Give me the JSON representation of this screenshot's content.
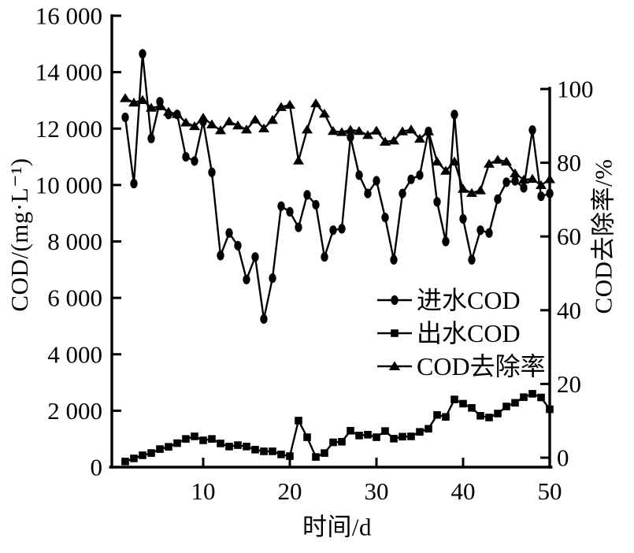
{
  "figure": {
    "background": "#ffffff",
    "ink_color": "#000000",
    "description": "COD treatment performance line chart, dual y-axes, 50 days"
  },
  "chart_data": {
    "type": "line",
    "x": [
      1,
      2,
      3,
      4,
      5,
      6,
      7,
      8,
      9,
      10,
      11,
      12,
      13,
      14,
      15,
      16,
      17,
      18,
      19,
      20,
      21,
      22,
      23,
      24,
      25,
      26,
      27,
      28,
      29,
      30,
      31,
      32,
      33,
      34,
      35,
      36,
      37,
      38,
      39,
      40,
      41,
      42,
      43,
      44,
      45,
      46,
      47,
      48,
      49,
      50
    ],
    "xlabel": "时间/d",
    "ylabel_left": "COD/(mg·L⁻¹)",
    "ylabel_right": "COD去除率/%",
    "xlim": [
      0,
      50
    ],
    "ylim_left": [
      0,
      16000
    ],
    "ylim_right": [
      0,
      100
    ],
    "grid": false,
    "legend_position": "inside-center-right",
    "x_ticks": [
      10,
      20,
      30,
      40,
      50
    ],
    "x_tick_labels": [
      "10",
      "20",
      "30",
      "40",
      "50"
    ],
    "y_left_ticks": [
      0,
      2000,
      4000,
      6000,
      8000,
      10000,
      12000,
      14000,
      16000
    ],
    "y_left_tick_labels": [
      "0",
      "2 000",
      "4 000",
      "6 000",
      "8 000",
      "10 000",
      "12 000",
      "14 000",
      "16 000"
    ],
    "y_right_ticks": [
      0,
      20,
      40,
      60,
      80,
      100
    ],
    "y_right_tick_labels": [
      "0",
      "20",
      "40",
      "60",
      "80",
      "100"
    ],
    "series": [
      {
        "name": "进水COD",
        "marker": "circle",
        "axis": "left",
        "unit": "mg·L⁻¹",
        "values": [
          12400,
          10050,
          14650,
          11650,
          12950,
          12500,
          12500,
          11000,
          10850,
          12250,
          10450,
          7500,
          8300,
          7850,
          6650,
          7450,
          5250,
          6700,
          9250,
          9050,
          8500,
          9650,
          9300,
          7450,
          8400,
          8450,
          11700,
          10350,
          9700,
          10150,
          8850,
          7350,
          9700,
          10200,
          10350,
          11900,
          9400,
          8000,
          12500,
          8800,
          7350,
          8400,
          8300,
          9500,
          10100,
          10150,
          9900,
          11950,
          9600,
          9700
        ]
      },
      {
        "name": "出水COD",
        "marker": "square",
        "axis": "left",
        "unit": "mg·L⁻¹",
        "values": [
          200,
          310,
          420,
          500,
          640,
          720,
          850,
          1000,
          1090,
          950,
          1000,
          840,
          730,
          780,
          730,
          620,
          560,
          560,
          450,
          390,
          1650,
          1060,
          360,
          500,
          880,
          900,
          1290,
          1120,
          1150,
          1060,
          1280,
          1010,
          1080,
          1090,
          1250,
          1360,
          1850,
          1780,
          2400,
          2250,
          2100,
          1820,
          1760,
          1900,
          2150,
          2280,
          2480,
          2600,
          2470,
          2050
        ]
      },
      {
        "name": "COD去除率",
        "marker": "triangle",
        "axis": "right",
        "unit": "%",
        "values": [
          97.5,
          96.3,
          97.0,
          94.9,
          95.3,
          93.8,
          93.2,
          90.9,
          89.9,
          92.2,
          90.4,
          88.8,
          91.2,
          90.1,
          89.0,
          91.7,
          89.3,
          91.6,
          95.1,
          95.7,
          80.6,
          89.0,
          96.1,
          93.3,
          88.6,
          88.3,
          88.9,
          88.6,
          87.5,
          88.7,
          85.7,
          86.0,
          88.5,
          89.0,
          86.5,
          88.5,
          80.3,
          77.8,
          80.3,
          72.9,
          71.8,
          72.5,
          79.7,
          80.8,
          80.3,
          77.1,
          75.4,
          75.6,
          73.9,
          75.5
        ]
      }
    ]
  },
  "legend": {
    "items": [
      {
        "label": "进水COD",
        "marker": "circle"
      },
      {
        "label": "出水COD",
        "marker": "square"
      },
      {
        "label": "COD去除率",
        "marker": "triangle"
      }
    ]
  }
}
